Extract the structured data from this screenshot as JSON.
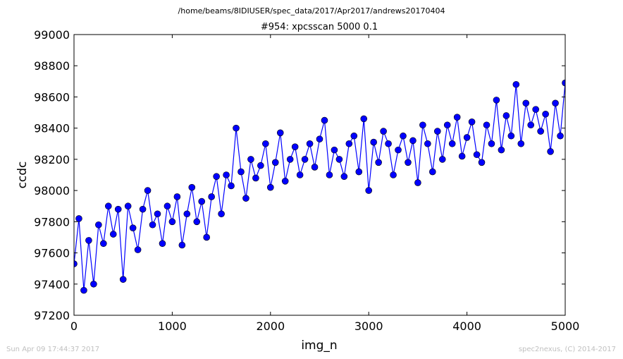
{
  "suptitle": "/home/beams/8IDIUSER/spec_data/2017/Apr2017/andrews20170404",
  "footer": {
    "left": "Sun Apr 09 17:44:37 2017",
    "right": "spec2nexus, (C) 2014-2017"
  },
  "chart_data": {
    "type": "line",
    "title": "#954: xpcsscan 5000 0.1",
    "xlabel": "img_n",
    "ylabel": "ccdc",
    "xlim": [
      0,
      5000
    ],
    "ylim": [
      97200,
      99000
    ],
    "xticks": [
      0,
      1000,
      2000,
      3000,
      4000,
      5000
    ],
    "yticks": [
      97200,
      97400,
      97600,
      97800,
      98000,
      98200,
      98400,
      98600,
      98800,
      99000
    ],
    "grid": false,
    "marker": "circle",
    "color": "#0000ff",
    "series": [
      {
        "x": [
          0,
          50,
          100,
          150,
          200,
          250,
          300,
          350,
          400,
          450,
          500,
          550,
          600,
          650,
          700,
          750,
          800,
          850,
          900,
          950,
          1000,
          1050,
          1100,
          1150,
          1200,
          1250,
          1300,
          1350,
          1400,
          1450,
          1500,
          1550,
          1600,
          1650,
          1700,
          1750,
          1800,
          1850,
          1900,
          1950,
          2000,
          2050,
          2100,
          2150,
          2200,
          2250,
          2300,
          2350,
          2400,
          2450,
          2500,
          2550,
          2600,
          2650,
          2700,
          2750,
          2800,
          2850,
          2900,
          2950,
          3000,
          3050,
          3100,
          3150,
          3200,
          3250,
          3300,
          3350,
          3400,
          3450,
          3500,
          3550,
          3600,
          3650,
          3700,
          3750,
          3800,
          3850,
          3900,
          3950,
          4000,
          4050,
          4100,
          4150,
          4200,
          4250,
          4300,
          4350,
          4400,
          4450,
          4500,
          4550,
          4600,
          4650,
          4700,
          4750,
          4800,
          4850,
          4900,
          4950,
          5000
        ],
        "values": [
          97530,
          97820,
          97360,
          97680,
          97400,
          97780,
          97660,
          97900,
          97720,
          97880,
          97430,
          97900,
          97760,
          97620,
          97880,
          98000,
          97780,
          97850,
          97660,
          97900,
          97800,
          97960,
          97650,
          97850,
          98020,
          97800,
          97930,
          97700,
          97960,
          98090,
          97850,
          98100,
          98030,
          98400,
          98120,
          97950,
          98200,
          98080,
          98160,
          98300,
          98020,
          98180,
          98370,
          98060,
          98200,
          98280,
          98100,
          98200,
          98300,
          98150,
          98330,
          98450,
          98100,
          98260,
          98200,
          98090,
          98300,
          98350,
          98120,
          98460,
          98000,
          98310,
          98180,
          98380,
          98300,
          98100,
          98260,
          98350,
          98180,
          98320,
          98050,
          98420,
          98300,
          98120,
          98380,
          98200,
          98420,
          98300,
          98470,
          98220,
          98340,
          98440,
          98230,
          98180,
          98420,
          98300,
          98580,
          98260,
          98480,
          98350,
          98680,
          98300,
          98560,
          98420,
          98520,
          98380,
          98490,
          98250,
          98560,
          98350,
          98690
        ]
      }
    ]
  }
}
